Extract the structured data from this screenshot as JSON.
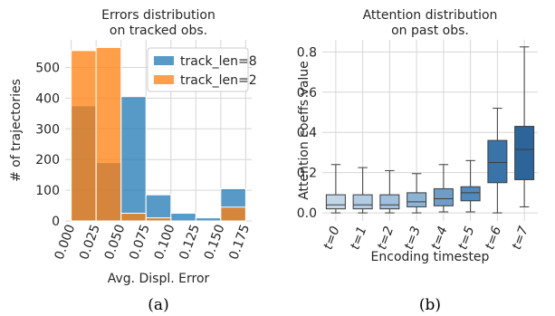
{
  "chart_data": [
    {
      "type": "bar",
      "title": "Errors distribution\non tracked obs.",
      "xlabel": "Avg. Displ. Error",
      "ylabel": "# of trajectories",
      "bin_edges": [
        0.0,
        0.025,
        0.05,
        0.075,
        0.1,
        0.125,
        0.15,
        0.175
      ],
      "xticks": [
        "0.000",
        "0.025",
        "0.050",
        "0.075",
        "0.100",
        "0.125",
        "0.150",
        "0.175"
      ],
      "yticks": [
        0,
        100,
        200,
        300,
        400,
        500
      ],
      "ylim": [
        0,
        590
      ],
      "xlim": [
        -0.006,
        0.181
      ],
      "grid": true,
      "legend_position": "top-right",
      "series": [
        {
          "name": "track_len=8",
          "color": "#1f77b4",
          "values": [
            375,
            190,
            405,
            85,
            25,
            10,
            105
          ]
        },
        {
          "name": "track_len=2",
          "color": "#ff7f0e",
          "values": [
            555,
            565,
            25,
            10,
            0,
            0,
            45
          ]
        }
      ],
      "caption": "(a)"
    },
    {
      "type": "box",
      "title": "Attention distribution\non past obs.",
      "xlabel": "Encoding timestep",
      "ylabel": "Attention coeffs value",
      "categories": [
        "t=0",
        "t=1",
        "t=2",
        "t=3",
        "t=4",
        "t=5",
        "t=6",
        "t=7"
      ],
      "yticks": [
        "0.0",
        "0.2",
        "0.4",
        "0.6",
        "0.8"
      ],
      "ylim": [
        -0.04,
        0.86
      ],
      "grid": true,
      "colors": [
        "#c2d6e8",
        "#b2cce3",
        "#a1c0dc",
        "#8cb2d4",
        "#6e9dc8",
        "#5089bb",
        "#3a73a8",
        "#2c6599"
      ],
      "boxes": [
        {
          "whislo": 0.0,
          "q1": 0.02,
          "med": 0.04,
          "q3": 0.09,
          "whishi": 0.24
        },
        {
          "whislo": 0.0,
          "q1": 0.02,
          "med": 0.04,
          "q3": 0.09,
          "whishi": 0.225
        },
        {
          "whislo": 0.0,
          "q1": 0.02,
          "med": 0.04,
          "q3": 0.09,
          "whishi": 0.21
        },
        {
          "whislo": 0.0,
          "q1": 0.03,
          "med": 0.055,
          "q3": 0.1,
          "whishi": 0.195
        },
        {
          "whislo": 0.005,
          "q1": 0.035,
          "med": 0.07,
          "q3": 0.12,
          "whishi": 0.24
        },
        {
          "whislo": 0.005,
          "q1": 0.06,
          "med": 0.1,
          "q3": 0.13,
          "whishi": 0.26
        },
        {
          "whislo": 0.0,
          "q1": 0.15,
          "med": 0.25,
          "q3": 0.36,
          "whishi": 0.52
        },
        {
          "whislo": 0.03,
          "q1": 0.165,
          "med": 0.315,
          "q3": 0.43,
          "whishi": 0.825
        }
      ],
      "caption": "(b)"
    }
  ]
}
